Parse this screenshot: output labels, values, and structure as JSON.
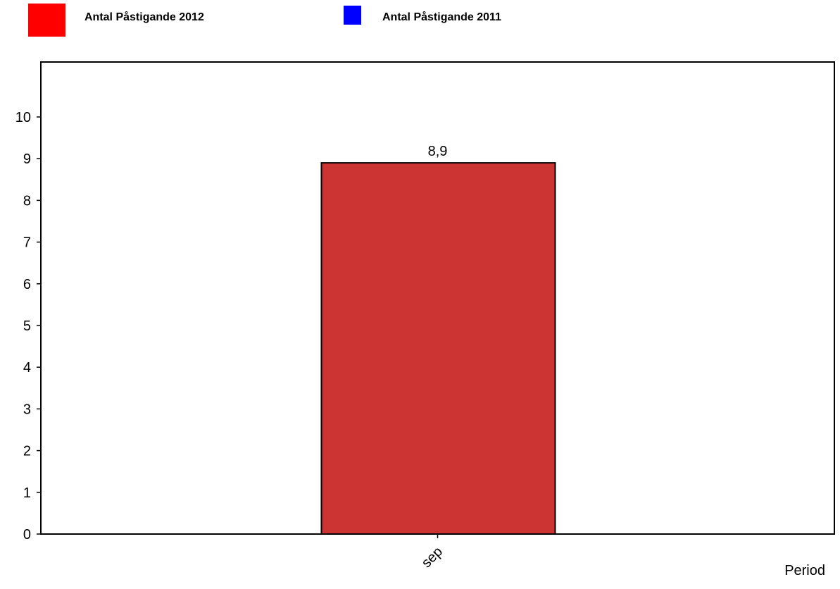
{
  "chart_data": {
    "type": "bar",
    "categories": [
      "sep"
    ],
    "series": [
      {
        "name": "Antal Påstigande 2012",
        "values": [
          8.9
        ],
        "color": "#ff0000",
        "bar_color": "#cc3333"
      },
      {
        "name": "Antal Påstigande 2011",
        "values": [
          null
        ],
        "color": "#0000ff"
      }
    ],
    "data_labels": [
      "8,9"
    ],
    "xlabel": "Period",
    "ylabel": "",
    "ylim": [
      0,
      11
    ],
    "yticks": [
      "0",
      "1",
      "2",
      "3",
      "4",
      "5",
      "6",
      "7",
      "8",
      "9",
      "10"
    ],
    "grid": false,
    "legend_position": "top"
  }
}
